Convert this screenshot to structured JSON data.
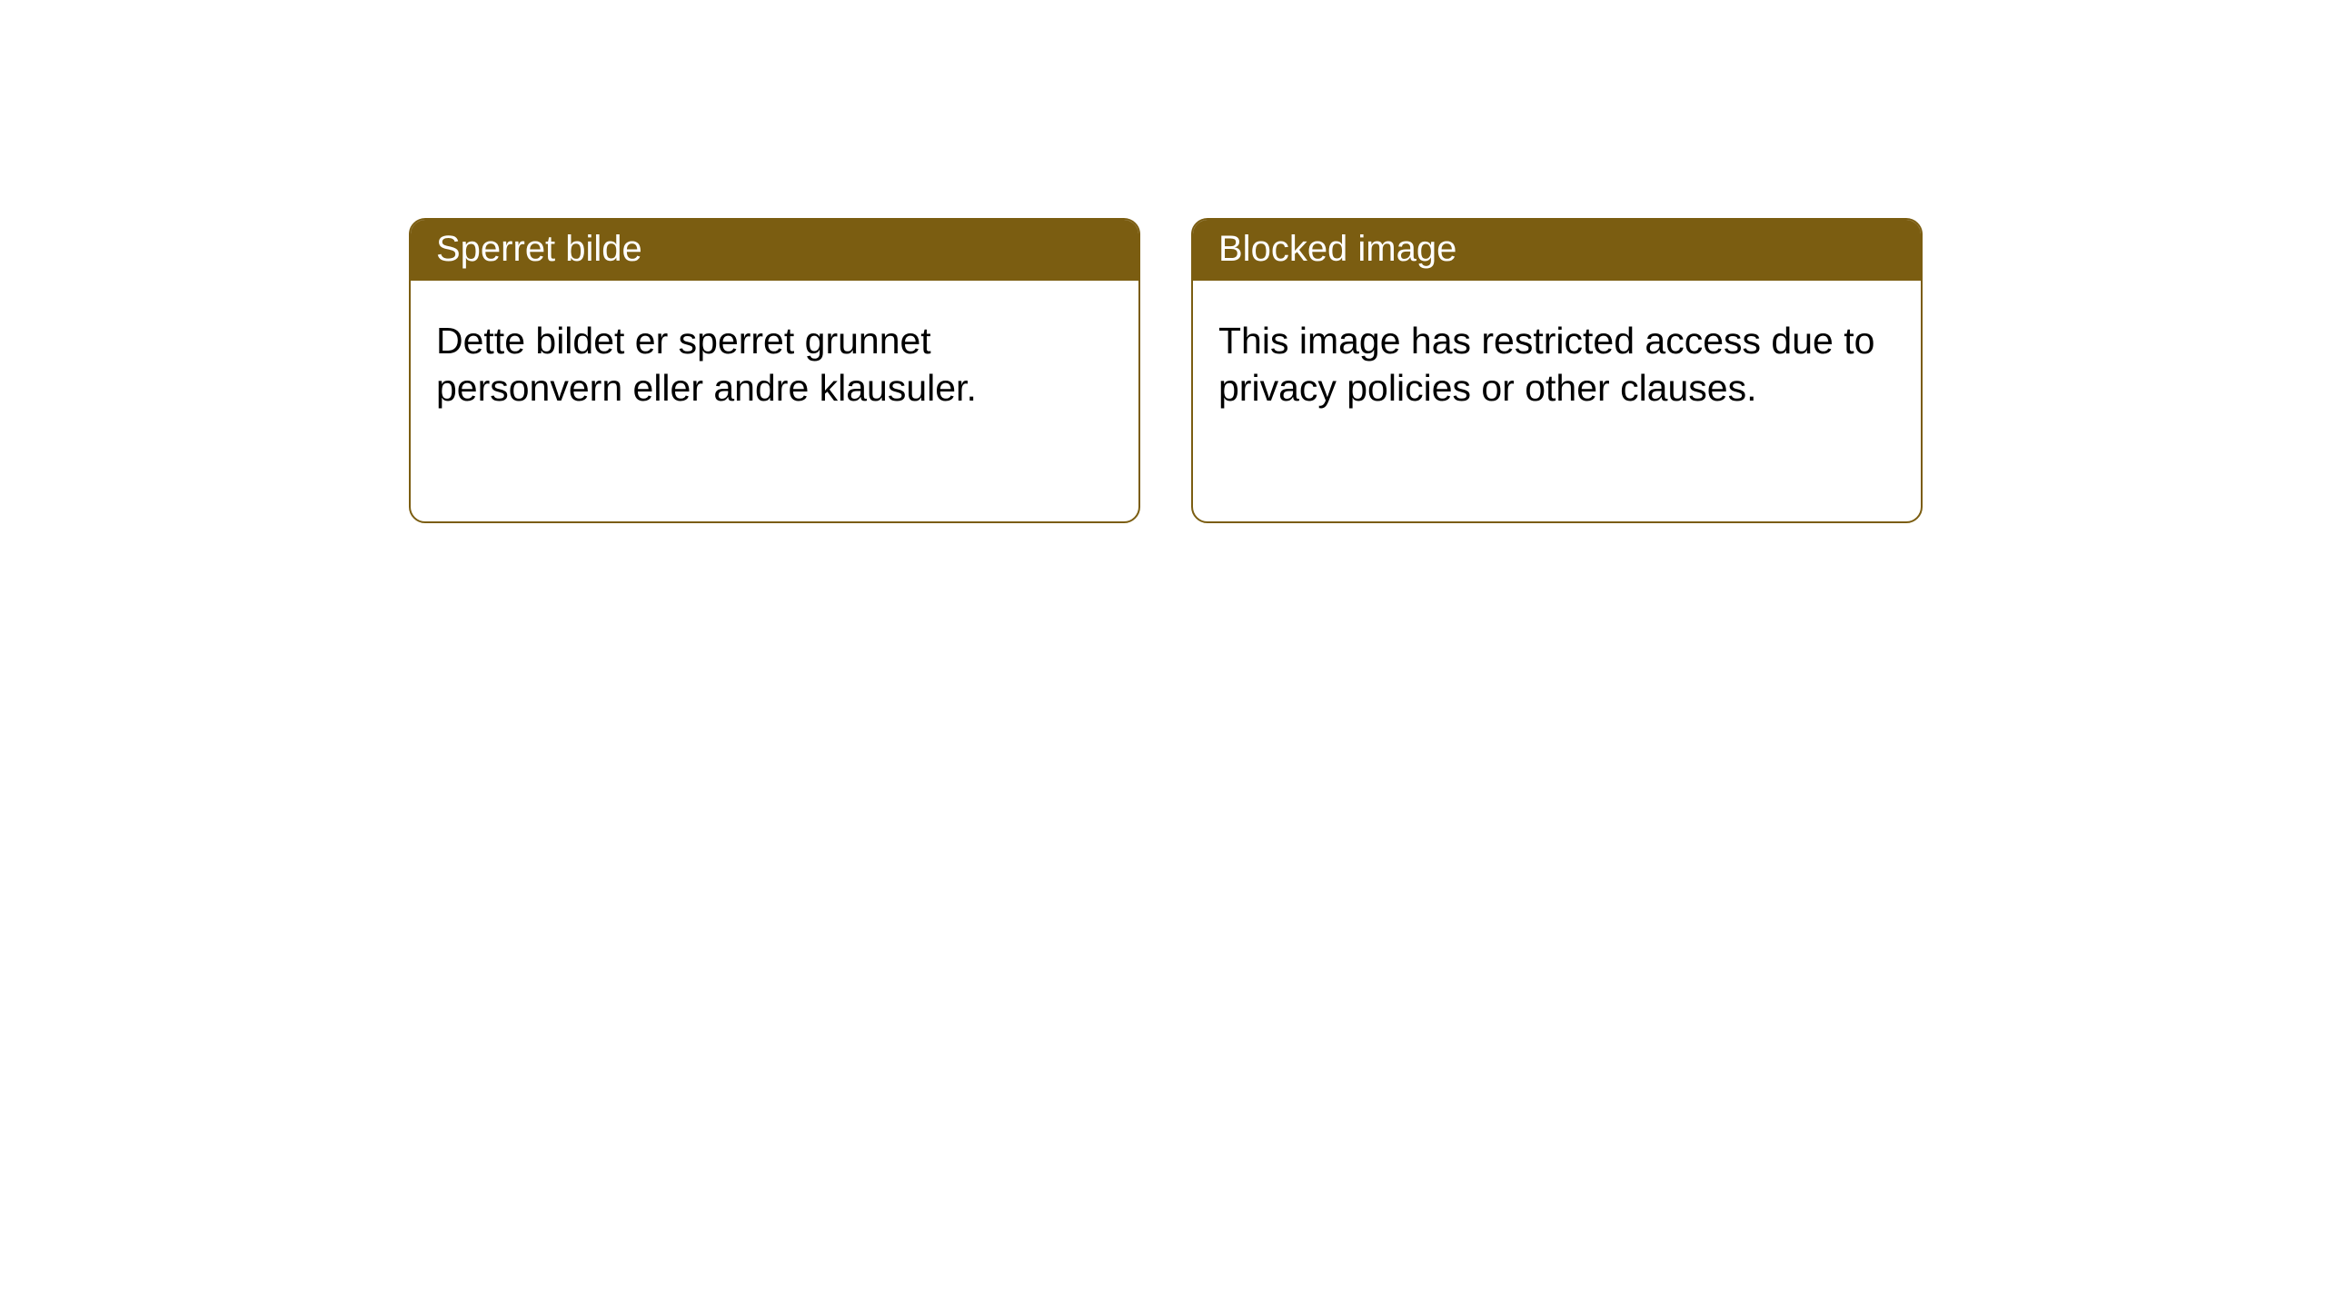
{
  "style": {
    "header_bg": "#7b5d11",
    "card_border": "#7b5d11",
    "card_bg": "#ffffff",
    "text_color": "#000000",
    "header_text_color": "#ffffff",
    "header_fontsize": 40,
    "body_fontsize": 41,
    "border_radius": 18
  },
  "cards": [
    {
      "title": "Sperret bilde",
      "body": "Dette bildet er sperret grunnet personvern eller andre klausuler."
    },
    {
      "title": "Blocked image",
      "body": "This image has restricted access due to privacy policies or other clauses."
    }
  ]
}
